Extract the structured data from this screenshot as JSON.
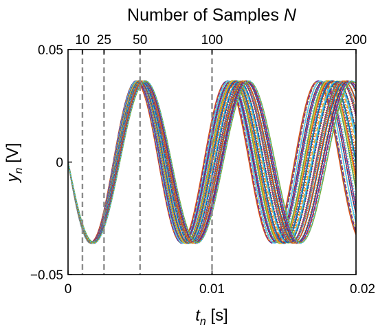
{
  "chart_data": {
    "type": "line",
    "title": "Number of Samples N",
    "title_parts": {
      "text": "Number of Samples ",
      "var": "N"
    },
    "xlabel": "t_n [s]",
    "xlabel_parts": {
      "var": "t",
      "sub": "n",
      "unit": " [s]"
    },
    "ylabel": "y_n [V]",
    "ylabel_parts": {
      "var": "y",
      "sub": "n",
      "unit": " [V]"
    },
    "xlim": [
      0,
      0.02
    ],
    "ylim": [
      -0.05,
      0.05
    ],
    "x_ticks": [
      0,
      0.01,
      0.02
    ],
    "x_tick_labels": [
      "0",
      "0.01",
      "0.02"
    ],
    "y_ticks": [
      -0.05,
      0,
      0.05
    ],
    "y_tick_labels": [
      "−0.05",
      "0",
      "0.05"
    ],
    "top_axis": {
      "label": "Number of Samples N",
      "ticks_x": [
        0.001,
        0.0025,
        0.005,
        0.01,
        0.02
      ],
      "tick_labels": [
        "10",
        "25",
        "50",
        "100",
        "200"
      ]
    },
    "vertical_markers_x": [
      0.001,
      0.0025,
      0.005,
      0.01
    ],
    "grid": false,
    "legend": "none",
    "signal": {
      "shape": "negative sine",
      "amplitude_V": 0.036,
      "base_period_s": 0.0066,
      "period_spread_s": [
        0.0063,
        0.0072
      ],
      "curve_count": 48
    },
    "colors": {
      "marker": "#8c8c8c",
      "series_palette": [
        "#0072BD",
        "#D95319",
        "#EDB120",
        "#7E2F8E",
        "#77AC30",
        "#4DBEEE",
        "#A2142F"
      ]
    }
  }
}
